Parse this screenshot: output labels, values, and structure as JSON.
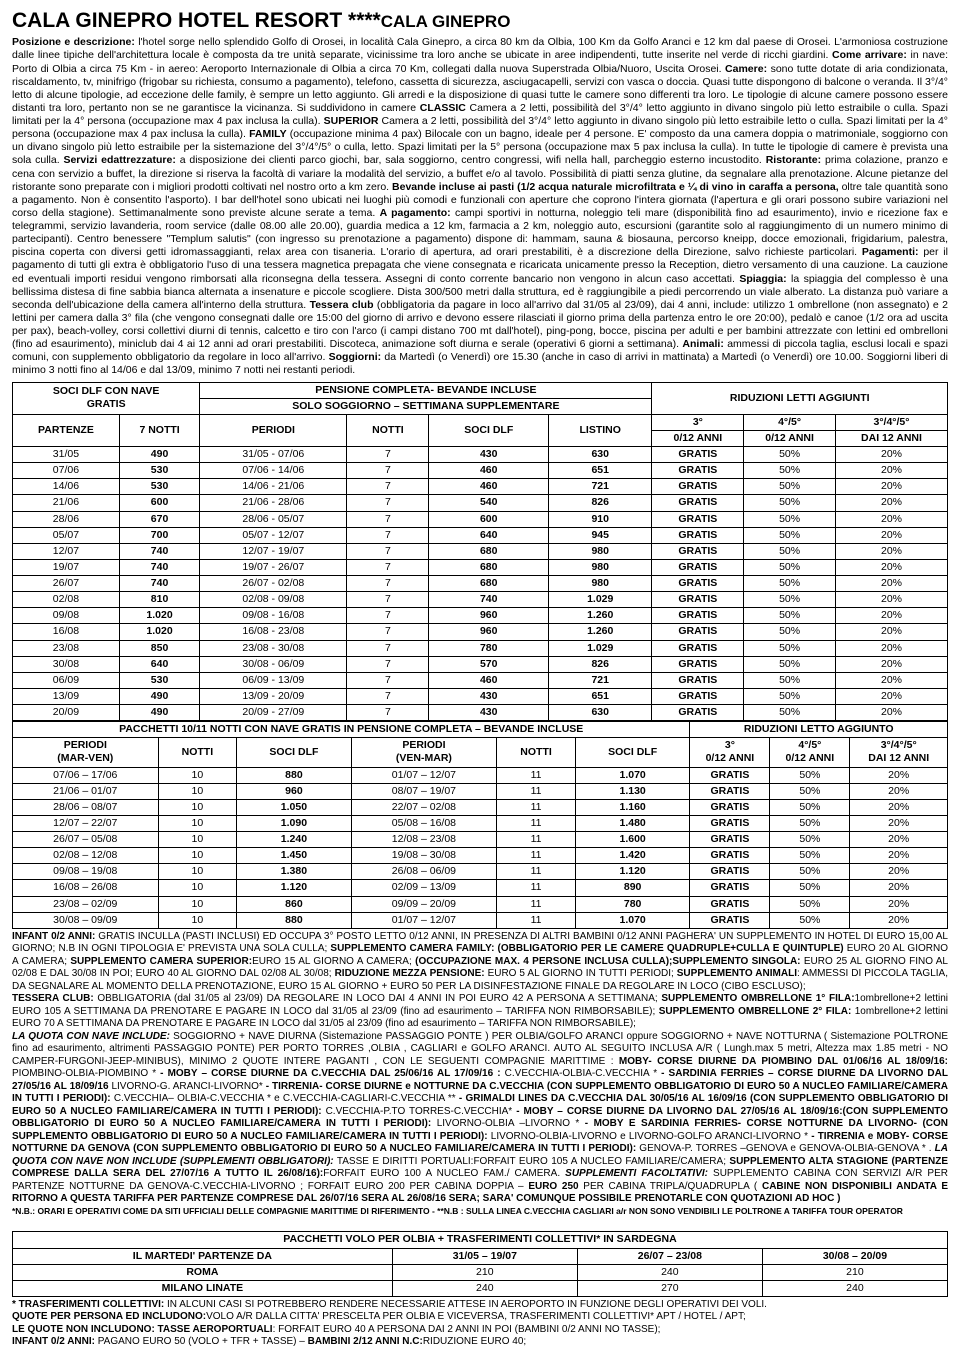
{
  "title_main": "CALA GINEPRO HOTEL RESORT ****",
  "title_sub": "CALA GINEPRO",
  "description_html": "<b>Posizione e descrizione:</b> l'hotel sorge nello splendido Golfo di Orosei, in località Cala Ginepro, a circa 80 km da Olbia, 100 Km da Golfo Aranci e 12 km dal paese di Orosei. L'armoniosa costruzione dalle linee tipiche dell'architettura locale è composta da tre unità separate, vicinissime tra loro anche se ubicate in aree indipendenti, tutte inserite nel verde di ricchi giardini. <b>Come arrivare:</b> in nave: Porto di Olbia a circa 75 Km - in aereo: Aeroporto Internazionale di Olbia a circa 70 Km, collegati dalla nuova Superstrada Olbia/Nuoro, Uscita Orosei. <b>Camere:</b> sono tutte dotate di aria condizionata, riscaldamento, tv, minifrigo (frigobar su richiesta, consumo a pagamento), telefono, cassetta di sicurezza, asciugacapelli, servizi con vasca o doccia. Quasi tutte dispongono di balcone o veranda. Il 3°/4° letto di alcune tipologie, ad eccezione delle family, è sempre un letto aggiunto. Gli arredi e la disposizione di quasi tutte le camere sono differenti tra loro. Le tipologie di alcune camere possono essere distanti tra loro, pertanto non se ne garantisce la vicinanza. Si suddividono in camere <b>CLASSIC</b> Camera a 2 letti, possibilità del 3°/4° letto aggiunto in divano singolo più letto estraibile o culla. Spazi limitati per la 4° persona (occupazione max 4 pax inclusa la culla). <b>SUPERIOR</b> Camera a 2 letti, possibilità del 3°/4° letto aggiunto in divano singolo più letto estraibile letto o culla. Spazi limitati per la 4° persona (occupazione max 4 pax inclusa la culla). <b>FAMILY</b> (occupazione minima 4 pax) Bilocale con un bagno, ideale per 4 persone. E' composto da una camera doppia o matrimoniale, soggiorno con un divano singolo più letto estraibile per la sistemazione del 3°/4°/5° o culla, letto. Spazi limitati per la 5° persona (occupazione max 5 pax inclusa la culla). In tutte le tipologie di camere è prevista una sola culla. <b>Servizi edattrezzature:</b> a disposizione dei clienti parco giochi, bar, sala soggiorno, centro congressi, wifi nella hall, parcheggio esterno incustodito. <b>Ristorante:</b> prima colazione, pranzo e cena con servizio a buffet, la direzione si riserva la facoltà di variare la modalità del servizio, a buffet e/o al tavolo. Possibilità di piatti senza glutine, da segnalare alla prenotazione. Alcune pietanze del ristorante sono preparate con i migliori prodotti coltivati nel nostro orto a km zero. <b>Bevande incluse ai pasti (1/2 acqua naturale microfiltrata e ¼ di vino in caraffa a persona,</b> oltre tale quantità sono a pagamento. Non è consentito l'asporto). I bar dell'hotel sono ubicati nei luoghi più comodi e funzionali con aperture che coprono l'intera giornata (l'apertura e gli orari possono subire variazioni nel corso della stagione). Settimanalmente sono previste alcune serate a tema. <b>A pagamento:</b> campi sportivi in notturna, noleggio teli mare (disponibilità fino ad esaurimento), invio e ricezione fax e telegrammi, servizio lavanderia, room service (dalle 08.00 alle 20.00), guardia medica a 12 km, farmacia a 2 km, noleggio auto, escursioni (garantite solo al raggiungimento di un numero minimo di partecipanti). Centro benessere \"Templum salutis\" (con ingresso su prenotazione a pagamento) dispone di: hammam, sauna & biosauna, percorso kneipp, docce emozionali, frigidarium, palestra, piscina coperta con diversi getti idromassaggianti, relax area con tisaneria. L'orario di apertura, ad orari prestabiliti, è a discrezione della Direzione, salvo richieste particolari. <b>Pagamenti:</b> per il pagamento di tutti gli extra è obbligatorio l'uso di una tessera magnetica prepagata che viene consegnata e ricaricata unicamente presso la Reception, dietro versamento di una cauzione. La cauzione ed eventuali importi residui vengono rimborsati alla riconsegna della tessera. Assegni di conto corrente bancario non vengono in alcun caso accettati. <b>Spiaggia:</b> la spiaggia del complesso è una bellissima distesa di fine sabbia bianca alternata a insenature e piccole scogliere. Dista 300/500 metri dalla struttura, ed è raggiungibile a piedi percorrendo un viale alberato. La distanza può variare a seconda dell'ubicazione della camera all'interno della struttura. <b>Tessera club</b> (obbligatoria da pagare in loco all'arrivo dal 31/05 al 23/09), dai 4 anni, include: utilizzo 1 ombrellone (non assegnato) e 2 lettini per camera dalla 3° fila (che vengono consegnati dalle ore 15:00 del giorno di arrivo e devono essere rilasciati il giorno prima della partenza entro le ore 20:00), pedalò e canoe (1/2 ora ad uscita per pax), beach-volley, corsi collettivi diurni di tennis, calcetto e tiro con l'arco (i campi distano 700 mt dall'hotel), ping-pong, bocce, piscina per adulti e per bambini attrezzate con lettini ed ombrelloni (fino ad esaurimento), miniclub dai 4 ai 12 anni ad orari prestabiliti. Discoteca, animazione soft diurna e serale (operativi 6 giorni a settimana). <b>Animali:</b> ammessi di piccola taglia, esclusi locali e spazi comuni, con supplemento obbligatorio da regolare in loco all'arrivo. <b>Soggiorni:</b> da Martedì (o Venerdì) ore 15.30 (anche in caso di arrivi in mattinata) a Martedì (o Venerdì) ore 10.00. Soggiorni liberi di minimo 3 notti fino al 14/06 e dal 13/09, minimo 7 notti nei restanti periodi.",
  "table1": {
    "header_left": "SOCI DLF CON NAVE\nGRATIS",
    "header_mid1": "PENSIONE COMPLETA- BEVANDE INCLUSE",
    "header_mid2": "SOLO SOGGIORNO – SETTIMANA SUPPLEMENTARE",
    "header_right": "RIDUZIONI LETTI AGGIUNTI",
    "cols_left": [
      "PARTENZE",
      "7 NOTTI"
    ],
    "cols_mid": [
      "PERIODI",
      "NOTTI",
      "SOCI DLF",
      "LISTINO"
    ],
    "cols_right_a": "3°",
    "cols_right_a2": "0/12 ANNI",
    "cols_right_b": "4°/5°",
    "cols_right_b2": "0/12 ANNI",
    "cols_right_c": "3°/4°/5°",
    "cols_right_c2": "DAI 12 ANNI",
    "rows": [
      [
        "31/05",
        "490",
        "31/05 - 07/06",
        "7",
        "430",
        "630",
        "GRATIS",
        "50%",
        "20%"
      ],
      [
        "07/06",
        "530",
        "07/06 - 14/06",
        "7",
        "460",
        "651",
        "GRATIS",
        "50%",
        "20%"
      ],
      [
        "14/06",
        "530",
        "14/06 - 21/06",
        "7",
        "460",
        "721",
        "GRATIS",
        "50%",
        "20%"
      ],
      [
        "21/06",
        "600",
        "21/06 - 28/06",
        "7",
        "540",
        "826",
        "GRATIS",
        "50%",
        "20%"
      ],
      [
        "28/06",
        "670",
        "28/06 - 05/07",
        "7",
        "600",
        "910",
        "GRATIS",
        "50%",
        "20%"
      ],
      [
        "05/07",
        "700",
        "05/07 - 12/07",
        "7",
        "640",
        "945",
        "GRATIS",
        "50%",
        "20%"
      ],
      [
        "12/07",
        "740",
        "12/07 - 19/07",
        "7",
        "680",
        "980",
        "GRATIS",
        "50%",
        "20%"
      ],
      [
        "19/07",
        "740",
        "19/07 - 26/07",
        "7",
        "680",
        "980",
        "GRATIS",
        "50%",
        "20%"
      ],
      [
        "26/07",
        "740",
        "26/07 - 02/08",
        "7",
        "680",
        "980",
        "GRATIS",
        "50%",
        "20%"
      ],
      [
        "02/08",
        "810",
        "02/08 - 09/08",
        "7",
        "740",
        "1.029",
        "GRATIS",
        "50%",
        "20%"
      ],
      [
        "09/08",
        "1.020",
        "09/08 - 16/08",
        "7",
        "960",
        "1.260",
        "GRATIS",
        "50%",
        "20%"
      ],
      [
        "16/08",
        "1.020",
        "16/08 - 23/08",
        "7",
        "960",
        "1.260",
        "GRATIS",
        "50%",
        "20%"
      ],
      [
        "23/08",
        "850",
        "23/08 - 30/08",
        "7",
        "780",
        "1.029",
        "GRATIS",
        "50%",
        "20%"
      ],
      [
        "30/08",
        "640",
        "30/08 - 06/09",
        "7",
        "570",
        "826",
        "GRATIS",
        "50%",
        "20%"
      ],
      [
        "06/09",
        "530",
        "06/09 - 13/09",
        "7",
        "460",
        "721",
        "GRATIS",
        "50%",
        "20%"
      ],
      [
        "13/09",
        "490",
        "13/09 - 20/09",
        "7",
        "430",
        "651",
        "GRATIS",
        "50%",
        "20%"
      ],
      [
        "20/09",
        "490",
        "20/09 - 27/09",
        "7",
        "430",
        "630",
        "GRATIS",
        "50%",
        "20%"
      ]
    ]
  },
  "table2": {
    "header_left": "PACCHETTI 10/11 NOTTI CON NAVE GRATIS IN PENSIONE COMPLETA – BEVANDE INCLUSE",
    "header_right": "RIDUZIONI LETTO AGGIUNTO",
    "cols": [
      "PERIODI\n(MAR-VEN)",
      "NOTTI",
      "SOCI DLF",
      "PERIODI\n(VEN-MAR)",
      "NOTTI",
      "SOCI DLF",
      "3°\n0/12 ANNI",
      "4°/5°\n0/12 ANNI",
      "3°/4°/5°\nDAI 12 ANNI"
    ],
    "rows": [
      [
        "07/06 – 17/06",
        "10",
        "880",
        "01/07 – 12/07",
        "11",
        "1.070",
        "GRATIS",
        "50%",
        "20%"
      ],
      [
        "21/06 – 01/07",
        "10",
        "960",
        "08/07 – 19/07",
        "11",
        "1.130",
        "GRATIS",
        "50%",
        "20%"
      ],
      [
        "28/06 – 08/07",
        "10",
        "1.050",
        "22/07 – 02/08",
        "11",
        "1.160",
        "GRATIS",
        "50%",
        "20%"
      ],
      [
        "12/07 – 22/07",
        "10",
        "1.090",
        "05/08 – 16/08",
        "11",
        "1.480",
        "GRATIS",
        "50%",
        "20%"
      ],
      [
        "26/07 – 05/08",
        "10",
        "1.240",
        "12/08 – 23/08",
        "11",
        "1.600",
        "GRATIS",
        "50%",
        "20%"
      ],
      [
        "02/08 – 12/08",
        "10",
        "1.450",
        "19/08 – 30/08",
        "11",
        "1.420",
        "GRATIS",
        "50%",
        "20%"
      ],
      [
        "09/08 – 19/08",
        "10",
        "1.380",
        "26/08 – 06/09",
        "11",
        "1.120",
        "GRATIS",
        "50%",
        "20%"
      ],
      [
        "16/08 – 26/08",
        "10",
        "1.120",
        "02/09 – 13/09",
        "11",
        "890",
        "GRATIS",
        "50%",
        "20%"
      ],
      [
        "23/08 – 02/09",
        "10",
        "860",
        "09/09 – 20/09",
        "11",
        "780",
        "GRATIS",
        "50%",
        "20%"
      ],
      [
        "30/08 – 09/09",
        "10",
        "880",
        "01/07 – 12/07",
        "11",
        "1.070",
        "GRATIS",
        "50%",
        "20%"
      ]
    ]
  },
  "infant_html": "<b>INFANT 0/2 ANNI:</b> GRATIS INCULLA (PASTI INCLUSI) ED OCCUPA 3° POSTO LETTO 0/12 ANNI, IN PRESENZA DI ALTRI BAMBINI 0/12 ANNI PAGHERA' UN SUPPLEMENTO IN HOTEL DI EURO 15,00 AL GIORNO; N.B IN OGNI TIPOLOGIA E' PREVISTA UNA SOLA CULLA; <b>SUPPLEMENTO CAMERA FAMILY: (OBBLIGATORIO PER LE CAMERE QUADRUPLE+CULLA E QUINTUPLE)</b> EURO 20 AL GIORNO A CAMERA; <b>SUPPLEMENTO CAMERA SUPERIOR:</b>EURO 15 AL GIORNO A CAMERA; <b>(OCCUPAZIONE MAX. 4 PERSONE INCLUSA CULLA);SUPPLEMENTO SINGOLA:</b> EURO 25 AL GIORNO FINO AL 02/08 E DAL 30/08 IN POI; EURO 40 AL GIORNO DAL 02/08 AL 30/08; <b>RIDUZIONE MEZZA PENSIONE:</b> EURO 5 AL GIORNO IN TUTTI PERIODI; <b>SUPPLEMENTO ANIMALI</b>: AMMESSI DI PICCOLA TAGLIA, DA SEGNALARE AL MOMENTO DELLA PRENOTAZIONE, EURO 15 AL GIORNO + EURO 50 PER LA DISINFESTAZIONE FINALE DA REGOLARE IN LOCO (CIBO ESCLUSO);<br><b>TESSERA CLUB:</b> OBBLIGATORIA (dal 31/05 al 23/09) DA REGOLARE IN LOCO DAI 4 ANNI IN POI EURO 42 A PERSONA A SETTIMANA; <b>SUPPLEMENTO OMBRELLONE 1° FILA:</b>1ombrellone+2 lettini EURO 105 A SETTIMANA DA PRENOTARE E PAGARE IN LOCO dal 31/05 al 23/09 (fino ad esaurimento – TARIFFA NON RIMBORSABILE); <b>SUPPLEMENTO OMBRELLONE 2° FILA:</b> 1ombrellone+2 lettini EURO 70 A SETTIMANA DA PRENOTARE E PAGARE IN LOCO dal 31/05 al 23/09 (fino ad esaurimento – TARIFFA NON RIMBORSABILE);<br><b><i>LA QUOTA CON NAVE INCLUDE:</i></b> SOGGIORNO + NAVE DIURNA (Sistemazione PASSAGGIO PONTE ) PER OLBIA/GOLFO ARANCI oppure SOGGIORNO + NAVE NOTTURNA ( Sistemazione POLTRONE fino ad esaurimento, altrimenti PASSAGGIO PONTE) PER PORTO TORRES ,OLBIA , CAGLIARI e GOLFO ARANCI. AUTO AL SEGUITO INCLUSA A/R ( Lungh.max 5 metri, Altezza max 1.85 metri - NO CAMPER-FURGONI-JEEP-MINIBUS), MINIMO 2 QUOTE INTERE PAGANTI , CON LE SEGUENTI COMPAGNIE MARITTIME : <b>MOBY- CORSE DIURNE DA PIOMBINO DAL 01/06/16 AL 18/09/16:</b> PIOMBINO-OLBIA-PIOMBINO *<b> - MOBY – CORSE DIURNE DA C.VECCHIA DAL 25/06/16 AL 17/09/16 :</b> C.VECCHIA-OLBIA-C.VECCHIA * <b>- SARDINIA FERRIES – CORSE DIURNE DA LIVORNO DAL 27/05/16 AL 18/09/16</b> LIVORNO-G. ARANCI-LIVORNO* <b>- TIRRENIA- CORSE DIURNE e NOTTURNE DA C.VECCHIA (CON SUPPLEMENTO OBBLIGATORIO DI EURO 50 A NUCLEO FAMILIARE/CAMERA IN TUTTI I PERIODI):</b> C.VECCHIA– OLBIA-C.VECCHIA * e C.VECCHIA-CAGLIARI-C.VECCHIA ** <b>- GRIMALDI LINES DA C.VECCHIA DAL 30/05/16 AL 16/09/16 (CON SUPPLEMENTO OBBLIGATORIO DI EURO 50 A NUCLEO FAMILIARE/CAMERA IN TUTTI I PERIODI):</b> C.VECCHIA-P.TO TORRES-C.VECCHIA* <b>- MOBY – CORSE DIURNE DA LIVORNO DAL 27/05/16 AL 18/09/16:(CON SUPPLEMENTO OBBLIGATORIO DI EURO 50 A NUCLEO FAMILIARE/CAMERA IN TUTTI I PERIODI):</b> LIVORNO-OLBIA –LIVORNO * <b>- MOBY E SARDINIA FERRIES- CORSE NOTTURNE DA LIVORNO- (CON SUPPLEMENTO OBBLIGATORIO DI EURO 50 A NUCLEO FAMILIARE/CAMERA IN TUTTI I PERIODI):</b> LIVORNO-OLBIA-LIVORNO e LIVORNO-GOLFO ARANCI-LIVORNO * <b>- TIRRENIA e MOBY- CORSE NOTTURNE DA GENOVA (CON SUPPLEMENTO OBBLIGATORIO DI EURO 50 A NUCLEO FAMILIARE/CAMERA IN TUTTI I PERIODI):</b> GENOVA-P. TORRES –GENOVA e GENOVA-OLBIA-GENOVA * . <b><i>LA QUOTA CON NAVE NON INCLUDE (SUPPLEMENTI OBBLIGATORI):</i></b> TASSE E DIRITTI PORTUALI:FORFAIT EURO 105 A NUCLEO FAMILIARE/CAMERA; <b>SUPPLEMENTO ALTA STAGIONE (PARTENZE COMPRESE DALLA SERA DEL 27/07/16 A TUTTO IL 26/08/16):</b>FORFAIT EURO 100 A NUCLEO FAM./ CAMERA. <b><i>SUPPLEMENTI FACOLTATIVI:</i></b> SUPPLEMENTO CABINA CON SERVIZI A/R PER PARTENZE NOTTURNE DA GENOVA-C.VECCHIA-LIVORNO ; FORFAIT EURO 200 PER CABINA DOPPIA – <b>EURO 250</b> PER CABINA TRIPLA/QUADRUPLA ( <b>CABINE NON DISPONIBILI ANDATA E RITORNO A QUESTA TARIFFA PER PARTENZE COMPRESE DAL 26/07/16 SERA AL 26/08/16 SERA; SARA' COMUNQUE POSSIBILE PRENOTARLE CON QUOTAZIONI AD HOC )</b><br><span class=\"small\"><b>*N.B.: ORARI E OPERATIVI COME DA SITI UFFICIALI DELLE COMPAGNIE MARITTIME DI RIFERIMENTO - **N.B : SULLA LINEA C.VECCHIA CAGLIARI a/r NON SONO VENDIBILI LE POLTRONE A TARIFFA TOUR OPERATOR</b></span>",
  "table3": {
    "title": "PACCHETTI VOLO PER OLBIA + TRASFERIMENTI COLLETTIVI* IN SARDEGNA",
    "cols": [
      "IL MARTEDI' PARTENZE DA",
      "31/05 – 19/07",
      "26/07 – 23/08",
      "30/08 – 20/09"
    ],
    "rows": [
      [
        "ROMA",
        "210",
        "240",
        "210"
      ],
      [
        "MILANO LINATE",
        "240",
        "270",
        "240"
      ]
    ]
  },
  "footer_html": "<b>* TRASFERIMENTI COLLETTIVI:</b> IN ALCUNI CASI SI POTREBBERO RENDERE NECESSARIE ATTESE IN AEROPORTO IN FUNZIONE DEGLI OPERATIVI DEI VOLI.<br><b>QUOTE PER PERSONA ED INCLUDONO:</b>VOLO A/R DALLA CITTA' PRESCELTA PER OLBIA E VICEVERSA, TRASFERIMENTI COLLETTIVI* APT / HOTEL / APT;<br><b>LE QUOTE NON INCLUDONO: TASSE AEROPORTUALI</b>: FORFAIT EURO 40 A PERSONA DAI 2 ANNI IN POI (BAMBINI 0/2 ANNI NO TASSE);<br><b>INFANT 0/2 ANNI:</b> PAGANO EURO 50 (VOLO + TFR + TASSE) – <b>BAMBINI 2/12 ANNI N.C:</b>RIDUZIONE EURO 40;"
}
